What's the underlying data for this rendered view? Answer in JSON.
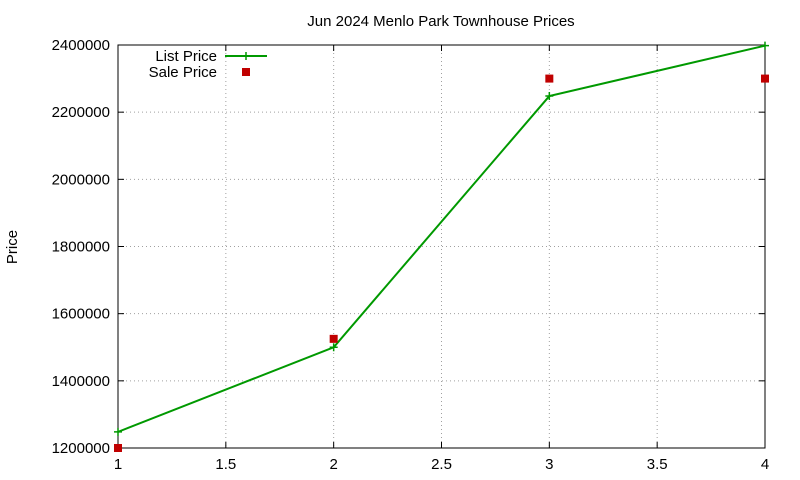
{
  "chart_data": {
    "type": "line",
    "title": "Jun 2024 Menlo Park Townhouse Prices",
    "xlabel": "",
    "ylabel": "Price",
    "xlim": [
      1,
      4
    ],
    "ylim": [
      1200000,
      2400000
    ],
    "x_ticks": [
      "1",
      "1.5",
      "2",
      "2.5",
      "3",
      "3.5",
      "4"
    ],
    "y_ticks": [
      "1200000",
      "1400000",
      "1600000",
      "1800000",
      "2000000",
      "2200000",
      "2400000"
    ],
    "grid": true,
    "legend_position": "top-left",
    "series": [
      {
        "name": "List Price",
        "style": "line-with-plus-markers",
        "color": "#009900",
        "x": [
          1,
          2,
          3,
          4
        ],
        "y": [
          1248000,
          1500000,
          2248000,
          2398000
        ]
      },
      {
        "name": "Sale Price",
        "style": "square-markers",
        "color": "#c00000",
        "x": [
          1,
          2,
          3,
          4
        ],
        "y": [
          1200000,
          1525000,
          2300000,
          2300000
        ]
      }
    ]
  }
}
